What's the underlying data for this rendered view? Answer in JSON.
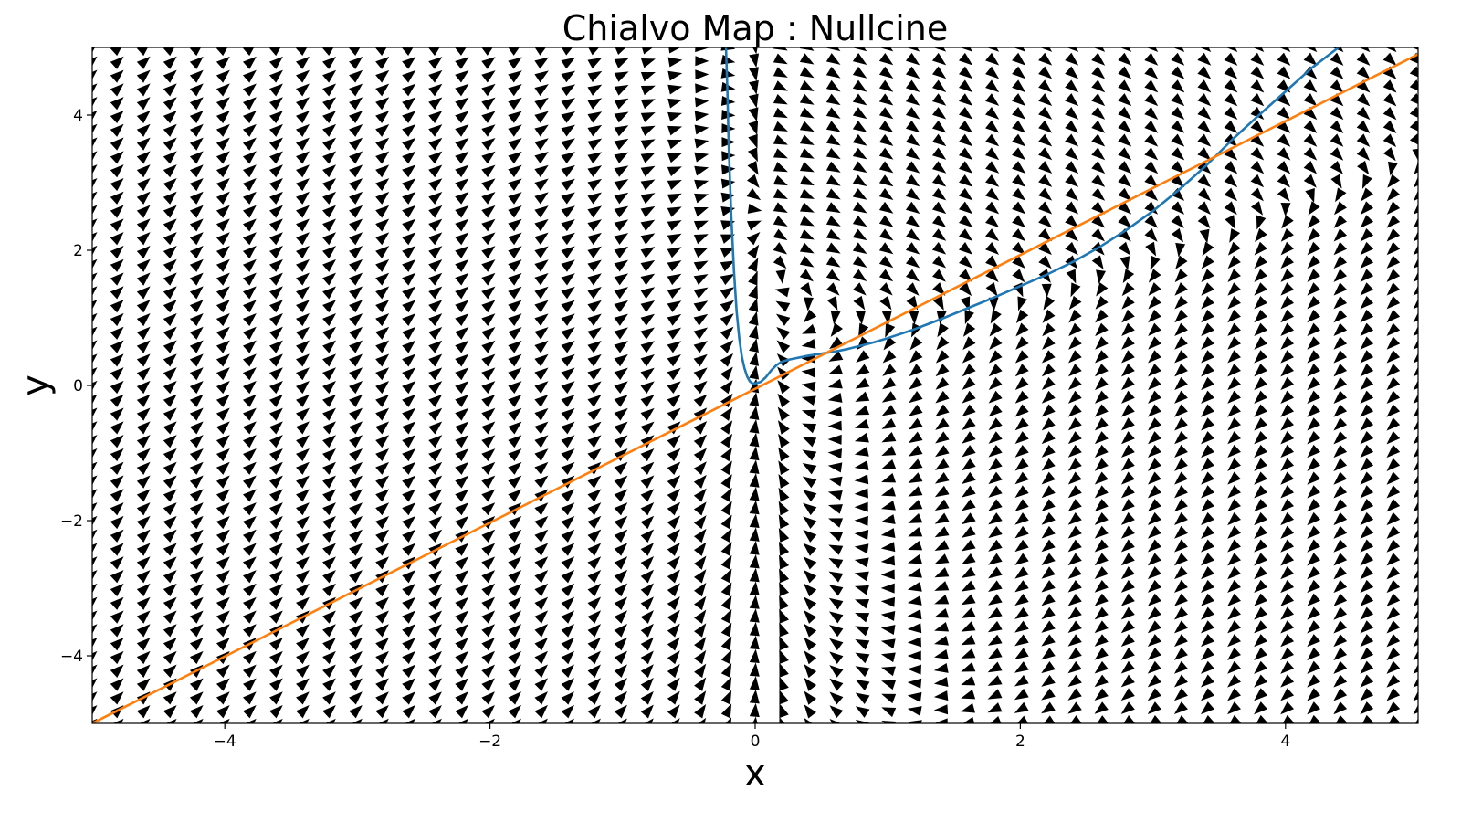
{
  "chart_data": {
    "type": "quiver",
    "title": "Chialvo Map : Nullcine",
    "xlabel": "x",
    "ylabel": "y",
    "xlim": [
      -5,
      5
    ],
    "ylim": [
      -5,
      5
    ],
    "x_ticks": [
      -4,
      -2,
      0,
      2,
      4
    ],
    "y_ticks": [
      -4,
      -2,
      0,
      2,
      4
    ],
    "x_tick_labels": [
      "−4",
      "−2",
      "0",
      "2",
      "4"
    ],
    "y_tick_labels": [
      "−4",
      "−2",
      "0",
      "2",
      "4"
    ],
    "grid": false,
    "vector_field": {
      "color": "#000000",
      "x_range": [
        -5,
        5
      ],
      "y_range": [
        -5,
        5
      ],
      "columns": 51,
      "rows": 51
    },
    "series": [
      {
        "color": "#1f77b4",
        "x": [
          -0.22,
          -0.21,
          -0.2,
          -0.18,
          -0.16,
          -0.14,
          -0.12,
          -0.1,
          -0.08,
          -0.06,
          -0.04,
          -0.02,
          0.0,
          0.04,
          0.08,
          0.12,
          0.16,
          0.2,
          0.25,
          0.3,
          0.35,
          0.4,
          0.5,
          0.6,
          0.7,
          0.8,
          0.9,
          1.0,
          1.2,
          1.4,
          1.6,
          1.8,
          2.0,
          2.2,
          2.4,
          2.6,
          2.8,
          3.0,
          3.2,
          3.4,
          3.6,
          3.8,
          4.0,
          4.2,
          4.4,
          4.5
        ],
        "y": [
          5.0,
          4.4,
          3.6,
          2.5,
          1.7,
          1.1,
          0.7,
          0.42,
          0.25,
          0.13,
          0.06,
          0.03,
          0.03,
          0.05,
          0.12,
          0.22,
          0.3,
          0.35,
          0.38,
          0.4,
          0.42,
          0.44,
          0.47,
          0.5,
          0.54,
          0.59,
          0.64,
          0.7,
          0.83,
          0.98,
          1.14,
          1.3,
          1.47,
          1.64,
          1.83,
          2.05,
          2.3,
          2.58,
          2.9,
          3.25,
          3.64,
          4.0,
          4.35,
          4.7,
          5.0,
          5.1
        ]
      },
      {
        "color": "#ff7f0e",
        "x": [
          -5,
          5
        ],
        "y": [
          -5,
          4.9
        ]
      }
    ]
  }
}
